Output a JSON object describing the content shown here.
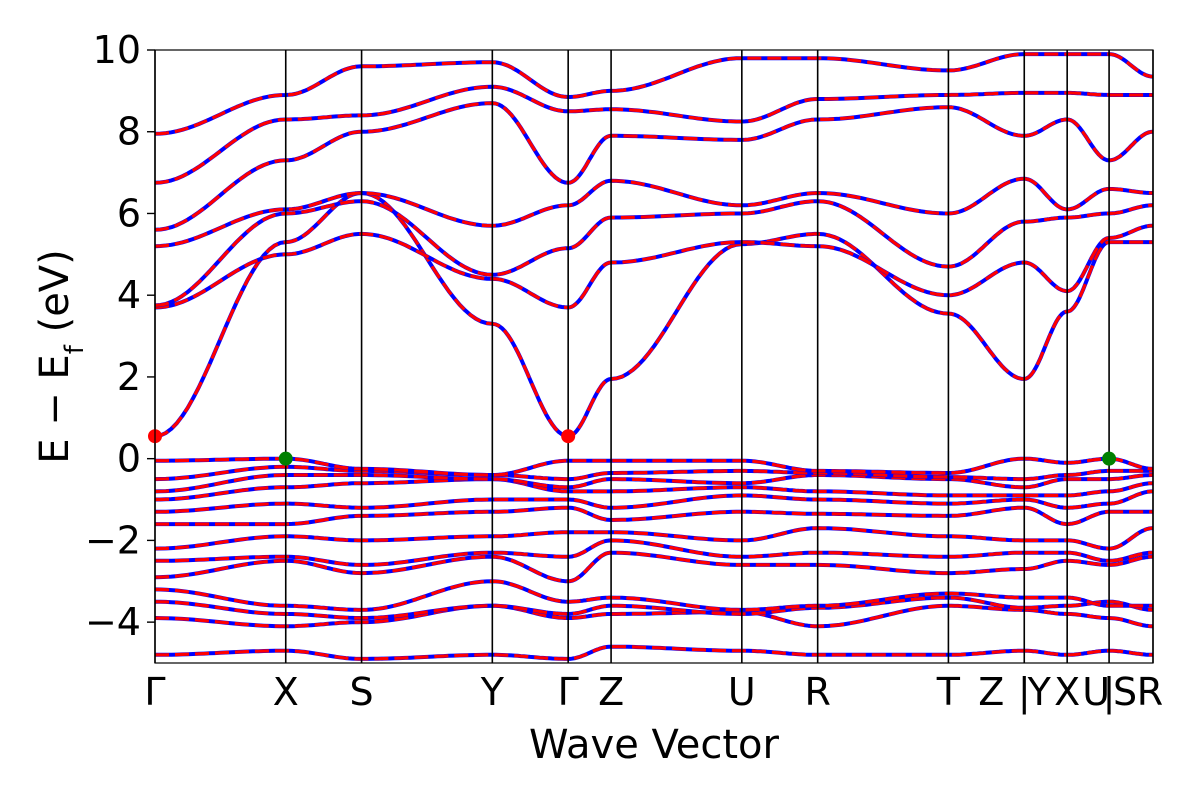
{
  "chart_data": {
    "type": "line",
    "title": "",
    "xlabel": "Wave Vector",
    "ylabel": "E − E_f (eV)",
    "ylabel_main": "E  −  E",
    "ylabel_sub": "f",
    "ylabel_unit": " (eV)",
    "ylim": [
      -5,
      10
    ],
    "yticks": [
      -4,
      -2,
      0,
      2,
      4,
      6,
      8,
      10
    ],
    "ytick_labels": [
      "−4",
      "−2",
      "0",
      "2",
      "4",
      "6",
      "8",
      "10"
    ],
    "xlim": [
      0,
      10
    ],
    "kpoints": [
      {
        "label": "Γ",
        "x": 0.0
      },
      {
        "label": "X",
        "x": 1.31
      },
      {
        "label": "S",
        "x": 2.07
      },
      {
        "label": "Y",
        "x": 3.38
      },
      {
        "label": "Γ",
        "x": 4.14
      },
      {
        "label": "Z",
        "x": 4.57
      },
      {
        "label": "U",
        "x": 5.88
      },
      {
        "label": "R",
        "x": 6.64
      },
      {
        "label": "T",
        "x": 7.95
      },
      {
        "label": "Z",
        "x": 8.38
      },
      {
        "label": "|",
        "x": 8.71
      },
      {
        "label": "Y",
        "x": 8.86
      },
      {
        "label": "X",
        "x": 9.14
      },
      {
        "label": "U",
        "x": 9.43
      },
      {
        "label": "|",
        "x": 9.56
      },
      {
        "label": "S",
        "x": 9.72
      },
      {
        "label": "R",
        "x": 9.97
      }
    ],
    "vlines": [
      0,
      1.31,
      2.07,
      3.38,
      4.14,
      4.57,
      5.88,
      6.64,
      7.95,
      8.71,
      9.14,
      9.56,
      10
    ],
    "segment_breaks": [
      8.71,
      9.14,
      9.56
    ],
    "conduction_band_minimum": [
      {
        "x": 0.0,
        "y": 0.55
      },
      {
        "x": 4.14,
        "y": 0.55
      }
    ],
    "valence_band_maximum": [
      {
        "x": 1.31,
        "y": 0.0
      },
      {
        "x": 9.56,
        "y": 0.0
      }
    ],
    "series": [
      {
        "color": "#0000ff",
        "style": "solid"
      },
      {
        "color": "#ff0000",
        "style": "dashed"
      }
    ],
    "band_nodes_x": [
      0,
      1.31,
      2.07,
      3.38,
      4.14,
      4.57,
      5.88,
      6.64,
      7.95,
      8.71,
      9.14,
      9.56,
      10
    ],
    "bands": [
      [
        -4.8,
        -4.7,
        -4.9,
        -4.8,
        -4.9,
        -4.6,
        -4.7,
        -4.8,
        -4.8,
        -4.7,
        -4.8,
        -4.7,
        -4.8
      ],
      [
        -3.9,
        -4.1,
        -4.0,
        -3.6,
        -3.9,
        -3.8,
        -3.75,
        -4.1,
        -3.6,
        -3.7,
        -3.8,
        -3.9,
        -4.1
      ],
      [
        -3.5,
        -3.8,
        -3.9,
        -3.6,
        -3.8,
        -3.6,
        -3.8,
        -3.65,
        -3.4,
        -3.65,
        -3.6,
        -3.5,
        -3.7
      ],
      [
        -3.2,
        -3.6,
        -3.7,
        -3.0,
        -3.5,
        -3.4,
        -3.7,
        -3.6,
        -3.3,
        -3.4,
        -3.4,
        -3.6,
        -3.6
      ],
      [
        -2.9,
        -2.5,
        -2.8,
        -2.4,
        -3.0,
        -2.3,
        -2.6,
        -2.6,
        -2.8,
        -2.7,
        -2.5,
        -2.6,
        -2.4
      ],
      [
        -2.5,
        -2.4,
        -2.6,
        -2.3,
        -2.4,
        -2.0,
        -2.4,
        -2.3,
        -2.4,
        -2.3,
        -2.3,
        -2.5,
        -2.3
      ],
      [
        -2.2,
        -1.9,
        -2.0,
        -1.9,
        -1.8,
        -1.8,
        -2.0,
        -1.7,
        -1.9,
        -2.0,
        -2.0,
        -2.2,
        -1.7
      ],
      [
        -1.6,
        -1.6,
        -1.4,
        -1.3,
        -1.2,
        -1.5,
        -1.3,
        -1.35,
        -1.4,
        -1.2,
        -1.6,
        -1.3,
        -1.3
      ],
      [
        -1.3,
        -1.1,
        -1.2,
        -1.0,
        -1.0,
        -1.2,
        -0.9,
        -1.0,
        -1.1,
        -1.0,
        -1.2,
        -1.1,
        -0.8
      ],
      [
        -1.0,
        -0.7,
        -0.6,
        -0.5,
        -0.8,
        -0.8,
        -0.7,
        -0.8,
        -0.9,
        -0.9,
        -0.9,
        -0.8,
        -0.6
      ],
      [
        -0.8,
        -0.4,
        -0.4,
        -0.5,
        -0.7,
        -0.5,
        -0.6,
        -0.4,
        -0.5,
        -0.7,
        -0.5,
        -0.5,
        -0.4
      ],
      [
        -0.5,
        -0.2,
        -0.3,
        -0.4,
        -0.5,
        -0.35,
        -0.3,
        -0.35,
        -0.45,
        -0.5,
        -0.4,
        -0.3,
        -0.3
      ],
      [
        -0.05,
        0.0,
        -0.25,
        -0.4,
        -0.05,
        -0.05,
        -0.05,
        -0.3,
        -0.35,
        0.0,
        -0.1,
        0.0,
        -0.25
      ],
      [
        0.55,
        5.3,
        6.5,
        3.3,
        0.55,
        1.95,
        5.25,
        5.5,
        3.55,
        1.95,
        3.6,
        5.3,
        5.3
      ],
      [
        3.7,
        5.0,
        5.5,
        4.4,
        3.7,
        4.8,
        5.3,
        5.2,
        4.0,
        4.8,
        4.1,
        5.4,
        5.7
      ],
      [
        3.75,
        6.0,
        6.3,
        4.5,
        5.15,
        5.9,
        6.0,
        6.3,
        4.7,
        5.8,
        5.9,
        6.0,
        6.2
      ],
      [
        5.2,
        6.1,
        6.5,
        5.7,
        6.2,
        6.8,
        6.2,
        6.5,
        6.0,
        6.85,
        6.1,
        6.6,
        6.5
      ],
      [
        5.6,
        7.3,
        8.0,
        8.7,
        6.75,
        7.9,
        7.8,
        8.3,
        8.6,
        7.9,
        8.3,
        7.3,
        8.0
      ],
      [
        6.75,
        8.3,
        8.4,
        9.1,
        8.5,
        8.55,
        8.25,
        8.8,
        8.9,
        8.95,
        8.95,
        8.9,
        8.9
      ],
      [
        7.95,
        8.9,
        9.6,
        9.7,
        8.85,
        9.0,
        9.8,
        9.8,
        9.5,
        9.9,
        9.9,
        9.9,
        9.35
      ]
    ]
  }
}
